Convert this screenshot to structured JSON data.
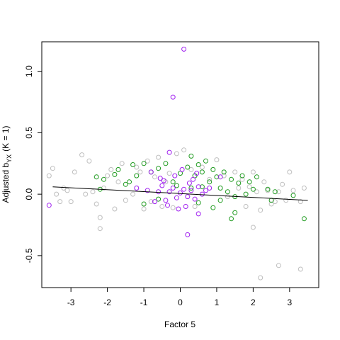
{
  "chart_data": {
    "type": "scatter",
    "title": "",
    "xlabel": "Factor 5",
    "ylabel": {
      "main": "Adjusted b",
      "subscript": "YX",
      "suffix": "(K = 1)"
    },
    "xlim": [
      -3.8,
      3.8
    ],
    "ylim": [
      -0.76,
      1.24
    ],
    "x_ticks": [
      -3,
      -2,
      -1,
      0,
      1,
      2,
      3
    ],
    "x_tick_labels": [
      "-3",
      "-2",
      "-1",
      "0",
      "1",
      "2",
      "3"
    ],
    "y_ticks": [
      -0.5,
      0.0,
      0.5,
      1.0
    ],
    "y_tick_labels": [
      "-0.5",
      "0.0",
      "0.5",
      "1.0"
    ],
    "grid": false,
    "legend": null,
    "colors": {
      "gray": "#bebebe",
      "green": "#1e9a1e",
      "purple": "#a020f0",
      "line": "#000000"
    },
    "regression_line": {
      "x": [
        -3.5,
        3.5
      ],
      "y": [
        0.06,
        -0.05
      ]
    },
    "series": [
      {
        "color": "gray",
        "points": [
          [
            -3.6,
            0.15
          ],
          [
            -3.5,
            0.21
          ],
          [
            -3.4,
            0.0
          ],
          [
            -3.3,
            -0.06
          ],
          [
            -3.2,
            0.05
          ],
          [
            -3.1,
            0.03
          ],
          [
            -3.0,
            -0.06
          ],
          [
            -2.9,
            0.18
          ],
          [
            -2.7,
            0.32
          ],
          [
            -2.6,
            0.0
          ],
          [
            -2.5,
            0.27
          ],
          [
            -2.4,
            0.02
          ],
          [
            -2.3,
            -0.08
          ],
          [
            -2.2,
            -0.19
          ],
          [
            -2.2,
            -0.28
          ],
          [
            -2.1,
            0.05
          ],
          [
            -2.0,
            0.15
          ],
          [
            -1.9,
            0.2
          ],
          [
            -1.8,
            -0.12
          ],
          [
            -1.7,
            0.1
          ],
          [
            -1.6,
            0.25
          ],
          [
            -1.5,
            -0.05
          ],
          [
            -1.3,
            0.0
          ],
          [
            -1.2,
            0.22
          ],
          [
            -1.1,
            0.18
          ],
          [
            -1.0,
            -0.12
          ],
          [
            -0.9,
            0.27
          ],
          [
            -0.8,
            -0.06
          ],
          [
            -0.7,
            0.14
          ],
          [
            -0.6,
            0.3
          ],
          [
            -0.5,
            -0.1
          ],
          [
            -0.4,
            0.1
          ],
          [
            -0.3,
            0.17
          ],
          [
            -0.2,
            -0.11
          ],
          [
            -0.1,
            0.33
          ],
          [
            0.1,
            0.36
          ],
          [
            0.3,
            0.2
          ],
          [
            0.4,
            -0.1
          ],
          [
            0.6,
            0.22
          ],
          [
            0.8,
            0.12
          ],
          [
            1.0,
            0.28
          ],
          [
            1.2,
            0.15
          ],
          [
            1.3,
            -0.02
          ],
          [
            1.5,
            0.18
          ],
          [
            1.6,
            0.05
          ],
          [
            1.7,
            0.12
          ],
          [
            1.8,
            -0.1
          ],
          [
            1.9,
            0.06
          ],
          [
            2.0,
            0.18
          ],
          [
            2.1,
            0.02
          ],
          [
            2.2,
            -0.13
          ],
          [
            2.3,
            0.1
          ],
          [
            2.4,
            0.03
          ],
          [
            2.5,
            -0.08
          ],
          [
            2.6,
            -0.06
          ],
          [
            2.7,
            0.02
          ],
          [
            2.8,
            0.08
          ],
          [
            2.9,
            -0.05
          ],
          [
            3.0,
            0.18
          ],
          [
            3.1,
            0.03
          ],
          [
            3.3,
            -0.06
          ],
          [
            3.4,
            0.05
          ],
          [
            2.0,
            -0.27
          ],
          [
            2.2,
            -0.68
          ],
          [
            2.7,
            -0.58
          ],
          [
            3.3,
            -0.61
          ]
        ]
      },
      {
        "color": "green",
        "points": [
          [
            -2.3,
            0.14
          ],
          [
            -2.2,
            0.04
          ],
          [
            -2.1,
            0.12
          ],
          [
            -1.7,
            0.2
          ],
          [
            -1.5,
            0.08
          ],
          [
            -1.3,
            0.24
          ],
          [
            -1.2,
            0.15
          ],
          [
            -1.0,
            0.25
          ],
          [
            -0.8,
            0.18
          ],
          [
            -0.6,
            0.21
          ],
          [
            -0.4,
            0.25
          ],
          [
            -0.2,
            0.1
          ],
          [
            0.0,
            0.17
          ],
          [
            0.2,
            0.22
          ],
          [
            0.3,
            0.31
          ],
          [
            0.4,
            0.15
          ],
          [
            0.5,
            0.24
          ],
          [
            0.6,
            0.18
          ],
          [
            0.7,
            0.27
          ],
          [
            0.8,
            0.1
          ],
          [
            0.9,
            0.2
          ],
          [
            1.0,
            0.14
          ],
          [
            1.1,
            0.05
          ],
          [
            1.2,
            0.18
          ],
          [
            1.3,
            0.02
          ],
          [
            1.4,
            0.12
          ],
          [
            1.5,
            -0.02
          ],
          [
            1.6,
            0.09
          ],
          [
            1.7,
            0.15
          ],
          [
            1.8,
            0.0
          ],
          [
            1.9,
            0.1
          ],
          [
            2.0,
            0.04
          ],
          [
            2.1,
            0.14
          ],
          [
            2.4,
            0.04
          ],
          [
            2.5,
            -0.05
          ],
          [
            2.6,
            0.02
          ],
          [
            3.1,
            -0.01
          ],
          [
            3.4,
            -0.2
          ],
          [
            1.4,
            -0.2
          ],
          [
            1.5,
            -0.15
          ],
          [
            -1.0,
            -0.08
          ],
          [
            -0.6,
            -0.04
          ],
          [
            0.5,
            -0.07
          ],
          [
            0.9,
            -0.11
          ],
          [
            1.1,
            -0.05
          ],
          [
            -0.1,
            0.07
          ],
          [
            0.3,
            0.05
          ],
          [
            0.6,
            0.06
          ],
          [
            -1.4,
            0.1
          ],
          [
            -1.8,
            0.16
          ]
        ]
      },
      {
        "color": "purple",
        "points": [
          [
            -3.6,
            -0.09
          ],
          [
            -0.3,
            0.34
          ],
          [
            0.1,
            1.18
          ],
          [
            -0.2,
            0.79
          ],
          [
            0.2,
            -0.33
          ],
          [
            0.5,
            -0.16
          ],
          [
            -0.8,
            0.18
          ],
          [
            -0.5,
            0.07
          ],
          [
            -0.4,
            -0.05
          ],
          [
            -0.3,
            0.02
          ],
          [
            -0.2,
            0.05
          ],
          [
            -0.1,
            -0.03
          ],
          [
            0.0,
            0.01
          ],
          [
            0.1,
            0.04
          ],
          [
            0.2,
            -0.02
          ],
          [
            0.3,
            0.03
          ],
          [
            0.4,
            -0.04
          ],
          [
            0.5,
            0.06
          ],
          [
            -0.6,
            0.02
          ],
          [
            -0.7,
            -0.06
          ],
          [
            0.6,
            0.0
          ],
          [
            0.7,
            0.03
          ],
          [
            -0.45,
            0.11
          ],
          [
            0.35,
            0.12
          ],
          [
            -0.15,
            0.15
          ],
          [
            0.15,
            -0.1
          ],
          [
            0.8,
            0.05
          ],
          [
            -0.9,
            0.03
          ],
          [
            1.1,
            0.14
          ],
          [
            -1.2,
            0.05
          ],
          [
            0.25,
            0.09
          ],
          [
            -0.35,
            -0.09
          ],
          [
            0.05,
            0.2
          ],
          [
            -0.05,
            -0.12
          ],
          [
            0.45,
            0.17
          ],
          [
            -0.55,
            0.13
          ]
        ]
      }
    ]
  }
}
